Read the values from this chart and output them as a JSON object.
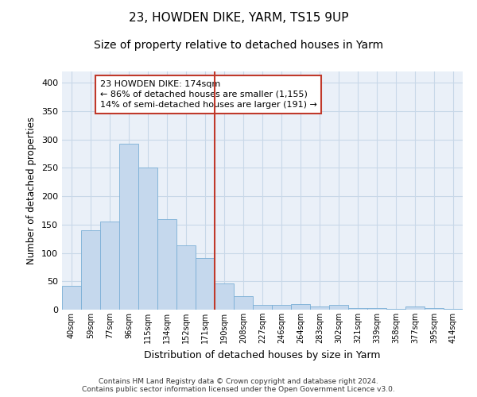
{
  "title": "23, HOWDEN DIKE, YARM, TS15 9UP",
  "subtitle": "Size of property relative to detached houses in Yarm",
  "xlabel": "Distribution of detached houses by size in Yarm",
  "ylabel": "Number of detached properties",
  "footer_line1": "Contains HM Land Registry data © Crown copyright and database right 2024.",
  "footer_line2": "Contains public sector information licensed under the Open Government Licence v3.0.",
  "bar_labels": [
    "40sqm",
    "59sqm",
    "77sqm",
    "96sqm",
    "115sqm",
    "134sqm",
    "152sqm",
    "171sqm",
    "190sqm",
    "208sqm",
    "227sqm",
    "246sqm",
    "264sqm",
    "283sqm",
    "302sqm",
    "321sqm",
    "339sqm",
    "358sqm",
    "377sqm",
    "395sqm",
    "414sqm"
  ],
  "bar_values": [
    42,
    140,
    155,
    293,
    251,
    160,
    113,
    91,
    46,
    24,
    9,
    9,
    10,
    5,
    8,
    3,
    3,
    2,
    5,
    3,
    2
  ],
  "bar_color": "#c5d8ed",
  "bar_edge_color": "#7aafd6",
  "vline_x": 7.5,
  "vline_color": "#c0392b",
  "annotation_line1": "23 HOWDEN DIKE: 174sqm",
  "annotation_line2": "← 86% of detached houses are smaller (1,155)",
  "annotation_line3": "14% of semi-detached houses are larger (191) →",
  "annotation_box_color": "#c0392b",
  "ylim": [
    0,
    420
  ],
  "yticks": [
    0,
    50,
    100,
    150,
    200,
    250,
    300,
    350,
    400
  ],
  "grid_color": "#c8d8e8",
  "background_color": "#eaf0f8",
  "title_fontsize": 11,
  "subtitle_fontsize": 10,
  "annotation_fontsize": 8
}
